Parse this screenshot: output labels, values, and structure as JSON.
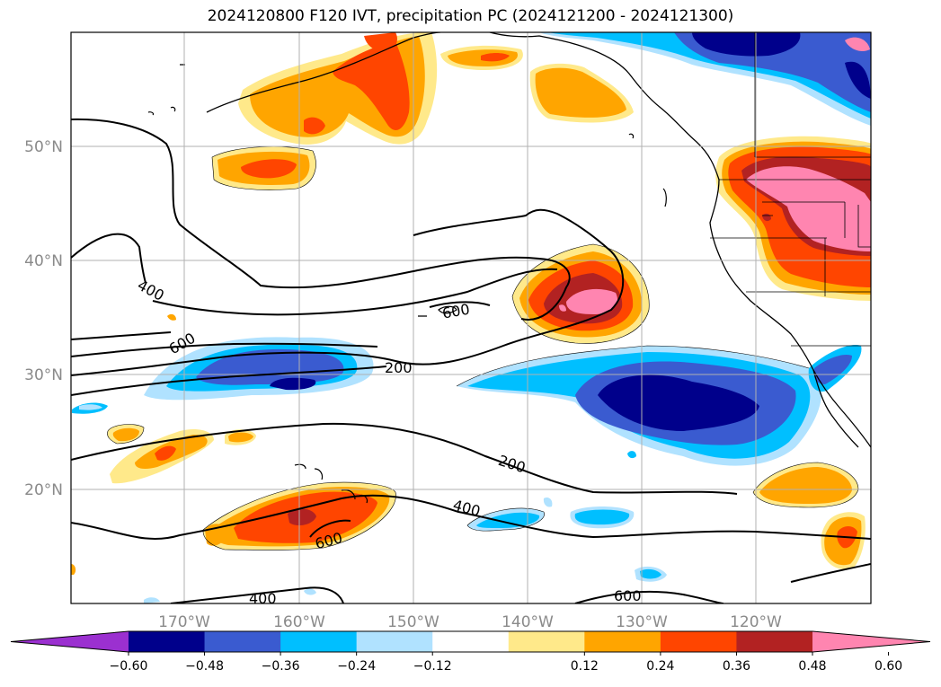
{
  "title": "2024120800 F120 IVT, precipitation PC (2024121200 - 2024121300)",
  "lat_labels": [
    "50°N",
    "40°N",
    "30°N",
    "20°N"
  ],
  "lon_labels": [
    "170°W",
    "160°W",
    "150°W",
    "140°W",
    "130°W",
    "120°W"
  ],
  "colorbar": {
    "ticks": [
      "−0.60",
      "−0.48",
      "−0.36",
      "−0.24",
      "−0.12",
      "0.12",
      "0.24",
      "0.36",
      "0.48",
      "0.60"
    ],
    "colors": [
      "#9b30d0",
      "#00008b",
      "#3a5bd0",
      "#00bfff",
      "#b0e2ff",
      "#ffffff",
      "#ffe98a",
      "#ffa500",
      "#ff4500",
      "#b22222",
      "#ff85b0"
    ]
  },
  "ivt_labels": [
    "400",
    "600",
    "600",
    "200",
    "200",
    "400",
    "600",
    "400",
    "600"
  ]
}
